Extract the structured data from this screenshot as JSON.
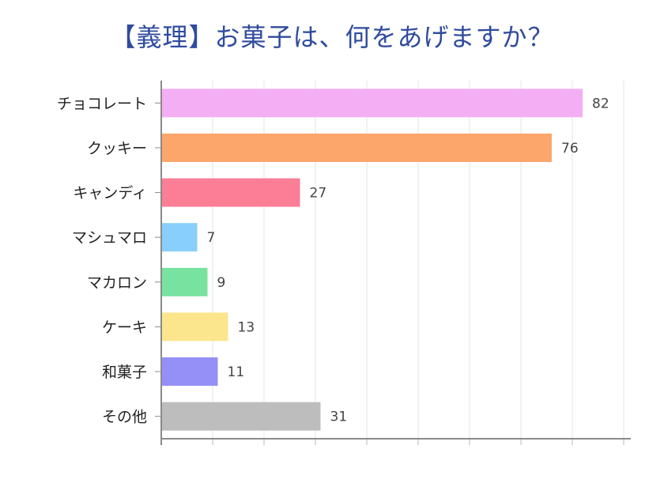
{
  "chart_data": {
    "type": "bar",
    "orientation": "horizontal",
    "title": "【義理】お菓子は、何をあげますか？",
    "categories": [
      "チョコレート",
      "クッキー",
      "キャンディ",
      "マシュマロ",
      "マカロン",
      "ケーキ",
      "和菓子",
      "その他"
    ],
    "values": [
      82,
      76,
      27,
      7,
      9,
      13,
      11,
      31
    ],
    "colors": [
      "#f4aef4",
      "#fca66c",
      "#fb7e96",
      "#88d0fb",
      "#78e3a0",
      "#fbe68e",
      "#9590f7",
      "#bdbdbd"
    ],
    "xlim": [
      0,
      90
    ],
    "grid": true,
    "data_labels": true
  }
}
